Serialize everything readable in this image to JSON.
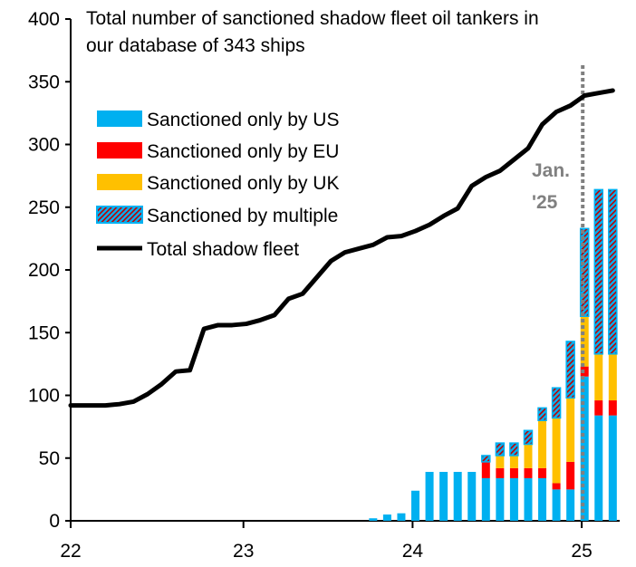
{
  "chart_data": {
    "type": "bar",
    "title": "Total number of sanctioned shadow fleet oil tankers in our database of 343 ships",
    "title_lines": [
      "Total number of sanctioned shadow fleet oil tankers in",
      "our database of 343 ships"
    ],
    "ylim": [
      0,
      400
    ],
    "yticks": [
      "0",
      "50",
      "100",
      "150",
      "200",
      "250",
      "300",
      "350",
      "400"
    ],
    "xticks": [
      "22",
      "23",
      "24",
      "25"
    ],
    "grid": false,
    "legend_placement": "top-left",
    "stacked": true,
    "categories": [
      "Oct-23",
      "Nov-23",
      "Dec-23",
      "Jan-24",
      "Feb-24",
      "Mar-24",
      "Apr-24",
      "May-24",
      "Jun-24",
      "Jul-24",
      "Aug-24",
      "Sep-24",
      "Oct-24",
      "Nov-24",
      "Dec-24",
      "Jan-25",
      "Feb-25",
      "Mar-25"
    ],
    "series": [
      {
        "name": "Sanctioned only by US",
        "color": "#00B0F0",
        "values": [
          2,
          5,
          6,
          24,
          39,
          39,
          39,
          39,
          34,
          34,
          34,
          34,
          34,
          25,
          25,
          115,
          84,
          84
        ]
      },
      {
        "name": "Sanctioned only by EU",
        "color": "#FF0000",
        "values": [
          0,
          0,
          0,
          0,
          0,
          0,
          0,
          0,
          13,
          8,
          8,
          8,
          8,
          5,
          22,
          8,
          12,
          12
        ]
      },
      {
        "name": "Sanctioned only by UK",
        "color": "#FFC000",
        "values": [
          0,
          0,
          0,
          0,
          0,
          0,
          0,
          0,
          0,
          10,
          10,
          19,
          38,
          52,
          51,
          40,
          37,
          37
        ]
      },
      {
        "name": "Sanctioned by multiple",
        "color": "#00B0F0",
        "hatch_color": "#C00000",
        "values": [
          0,
          0,
          0,
          0,
          0,
          0,
          0,
          0,
          5,
          10,
          10,
          11,
          10,
          24,
          45,
          70,
          131,
          131
        ]
      }
    ],
    "line": {
      "name": "Total shadow fleet",
      "type": "line",
      "color": "#000000",
      "x": [
        "Jan-22",
        "Feb-22",
        "Mar-22",
        "Apr-22",
        "May-22",
        "Jun-22",
        "Jul-22",
        "Aug-22",
        "Sep-22",
        "Oct-22",
        "Nov-22",
        "Dec-22",
        "Jan-23",
        "Feb-23",
        "Mar-23",
        "Apr-23",
        "May-23",
        "Jun-23",
        "Jul-23",
        "Aug-23",
        "Sep-23",
        "Oct-23",
        "Nov-23",
        "Dec-23",
        "Jan-24",
        "Feb-24",
        "Mar-24",
        "Apr-24",
        "May-24",
        "Jun-24",
        "Jul-24",
        "Aug-24",
        "Sep-24",
        "Oct-24",
        "Nov-24",
        "Dec-24",
        "Jan-25",
        "Feb-25",
        "Mar-25"
      ],
      "values": [
        92,
        92,
        92,
        93,
        95,
        101,
        109,
        119,
        120,
        153,
        156,
        156,
        157,
        160,
        164,
        177,
        181,
        194,
        207,
        214,
        217,
        220,
        226,
        227,
        231,
        236,
        243,
        249,
        267,
        274,
        279,
        288,
        297,
        316,
        326,
        331,
        339,
        341,
        343
      ]
    },
    "annotation": {
      "text_lines": [
        "Jan.",
        "'25"
      ],
      "at": "Jan-25",
      "color": "#808080"
    }
  }
}
